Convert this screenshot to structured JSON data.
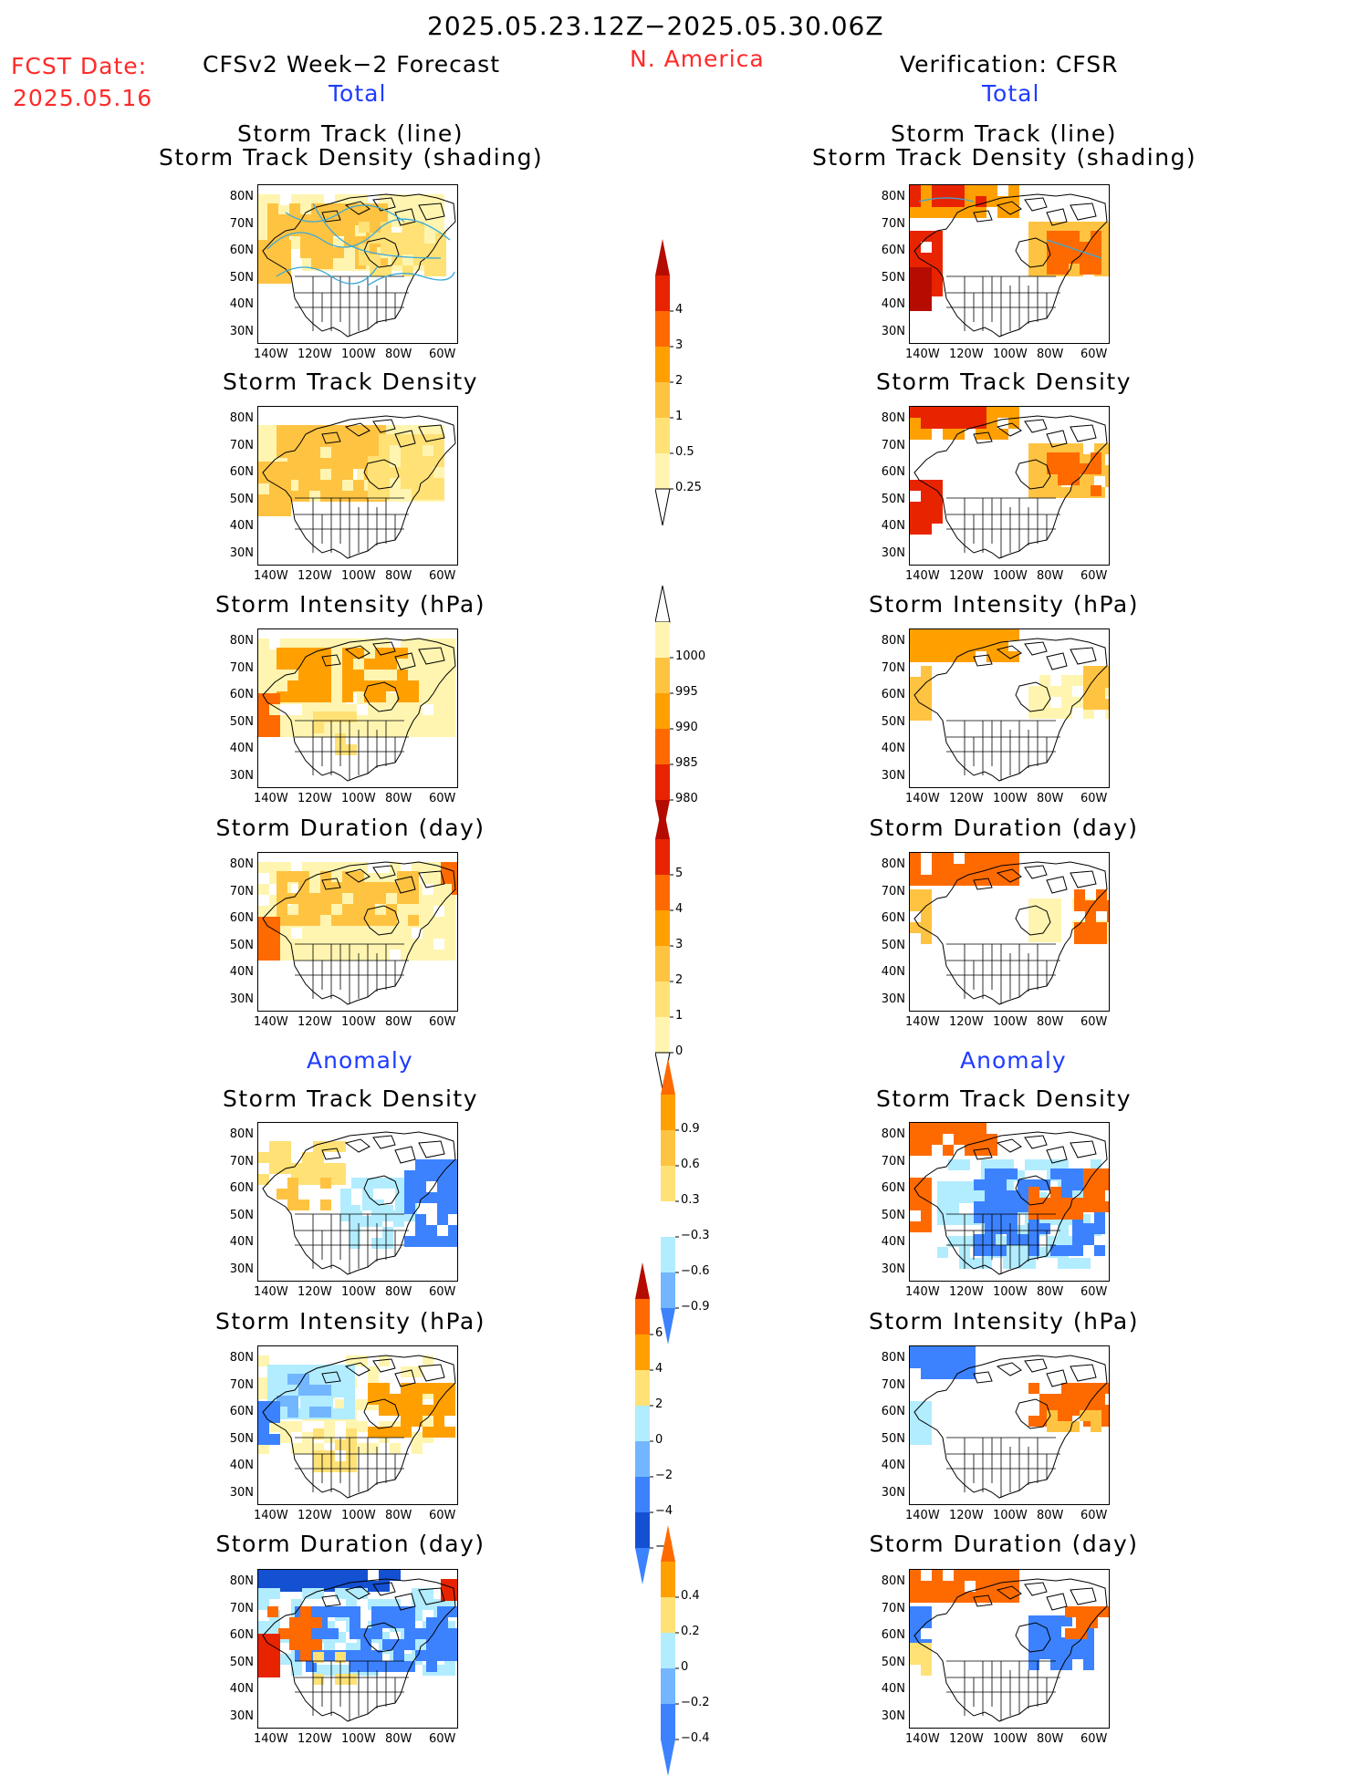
{
  "header": {
    "period": "2025.05.23.12Z−2025.05.30.06Z",
    "region": "N. America",
    "fcst_label": "FCST Date:",
    "fcst_date": "2025.05.16",
    "left_title": "CFSv2 Week−2 Forecast",
    "right_title": "Verification: CFSR",
    "total_label": "Total",
    "anomaly_label": "Anomaly"
  },
  "panel_titles": {
    "storm_track_line": "Storm Track (line)",
    "storm_track_density_shading": "Storm Track Density (shading)",
    "storm_track_density": "Storm Track Density",
    "storm_intensity": "Storm Intensity (hPa)",
    "storm_duration": "Storm Duration (day)"
  },
  "axes": {
    "lat_labels": [
      "80N",
      "70N",
      "60N",
      "50N",
      "40N",
      "30N"
    ],
    "lon_labels": [
      "140W",
      "120W",
      "100W",
      "80W",
      "60W"
    ]
  },
  "colorbars": {
    "density": [
      "4",
      "3",
      "2",
      "1",
      "0.5",
      "0.25"
    ],
    "intensity": [
      "1000",
      "995",
      "990",
      "985",
      "980"
    ],
    "duration": [
      "5",
      "4",
      "3",
      "2",
      "1",
      "0"
    ],
    "density_anom": [
      "0.9",
      "0.6",
      "0.3",
      "−0.3",
      "−0.6",
      "−0.9"
    ],
    "intensity_anom": [
      "6",
      "4",
      "2",
      "0",
      "−2",
      "−4",
      "−6"
    ],
    "duration_anom": [
      "0.4",
      "0.2",
      "0",
      "−0.2",
      "−0.4"
    ]
  },
  "colors": {
    "yellow_light": "#fff5b0",
    "yellow": "#ffe176",
    "orange_light": "#ffc342",
    "orange": "#ffa000",
    "orange_red": "#ff6a00",
    "red": "#e82400",
    "dark_red": "#b40c00",
    "blue_light": "#b2ecff",
    "blue_med": "#72b6ff",
    "blue": "#3c82ff",
    "blue_dark": "#1450d2"
  }
}
